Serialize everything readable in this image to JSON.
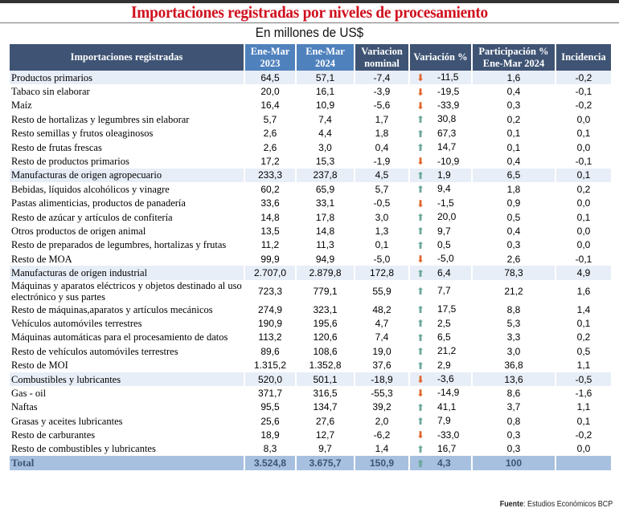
{
  "title": "Importaciones registradas por niveles de procesamiento",
  "subtitle": "En millones de US$",
  "colors": {
    "title": "#d0101e",
    "header_dark": "#3f5474",
    "header_light": "#4f81bd",
    "category_row": "#e8eef7",
    "total_row": "#a7c0e0",
    "arrow_up": "#6aa79a",
    "arrow_down": "#e0642a"
  },
  "headers": {
    "name": "Importaciones registradas",
    "y2023": "Ene-Mar 2023",
    "y2024": "Ene-Mar 2024",
    "var_nominal": "Variacion nominal",
    "var_pct": "Variación %",
    "participacion": "Participación % Ene-Mar 2024",
    "incidencia": "Incidencia"
  },
  "rows": [
    {
      "name": "Productos primarios",
      "y2023": "64,5",
      "y2024": "57,1",
      "var_nominal": "-7,4",
      "trend": "down",
      "var_pct": "-11,5",
      "participacion": "1,6",
      "incidencia": "-0,2",
      "category": true
    },
    {
      "name": "Tabaco sin elaborar",
      "y2023": "20,0",
      "y2024": "16,1",
      "var_nominal": "-3,9",
      "trend": "down",
      "var_pct": "-19,5",
      "participacion": "0,4",
      "incidencia": "-0,1"
    },
    {
      "name": "Maíz",
      "y2023": "16,4",
      "y2024": "10,9",
      "var_nominal": "-5,6",
      "trend": "down",
      "var_pct": "-33,9",
      "participacion": "0,3",
      "incidencia": "-0,2"
    },
    {
      "name": "Resto de hortalizas y legumbres sin elaborar",
      "y2023": "5,7",
      "y2024": "7,4",
      "var_nominal": "1,7",
      "trend": "up",
      "var_pct": "30,8",
      "participacion": "0,2",
      "incidencia": "0,0"
    },
    {
      "name": "Resto semillas y frutos oleaginosos",
      "y2023": "2,6",
      "y2024": "4,4",
      "var_nominal": "1,8",
      "trend": "up",
      "var_pct": "67,3",
      "participacion": "0,1",
      "incidencia": "0,1"
    },
    {
      "name": "Resto de frutas frescas",
      "y2023": "2,6",
      "y2024": "3,0",
      "var_nominal": "0,4",
      "trend": "up",
      "var_pct": "14,7",
      "participacion": "0,1",
      "incidencia": "0,0"
    },
    {
      "name": "Resto de productos primarios",
      "y2023": "17,2",
      "y2024": "15,3",
      "var_nominal": "-1,9",
      "trend": "down",
      "var_pct": "-10,9",
      "participacion": "0,4",
      "incidencia": "-0,1"
    },
    {
      "name": "Manufacturas de origen agropecuario",
      "y2023": "233,3",
      "y2024": "237,8",
      "var_nominal": "4,5",
      "trend": "up",
      "var_pct": "1,9",
      "participacion": "6,5",
      "incidencia": "0,1",
      "category": true
    },
    {
      "name": "Bebidas, líquidos alcohólicos y vinagre",
      "y2023": "60,2",
      "y2024": "65,9",
      "var_nominal": "5,7",
      "trend": "up",
      "var_pct": "9,4",
      "participacion": "1,8",
      "incidencia": "0,2"
    },
    {
      "name": "Pastas alimenticias, productos de panadería",
      "y2023": "33,6",
      "y2024": "33,1",
      "var_nominal": "-0,5",
      "trend": "down",
      "var_pct": "-1,5",
      "participacion": "0,9",
      "incidencia": "0,0"
    },
    {
      "name": "Resto de azúcar y artículos de confitería",
      "y2023": "14,8",
      "y2024": "17,8",
      "var_nominal": "3,0",
      "trend": "up",
      "var_pct": "20,0",
      "participacion": "0,5",
      "incidencia": "0,1"
    },
    {
      "name": "Otros productos de origen animal",
      "y2023": "13,5",
      "y2024": "14,8",
      "var_nominal": "1,3",
      "trend": "up",
      "var_pct": "9,7",
      "participacion": "0,4",
      "incidencia": "0,0"
    },
    {
      "name": "Resto de preparados de legumbres, hortalizas y frutas",
      "y2023": "11,2",
      "y2024": "11,3",
      "var_nominal": "0,1",
      "trend": "up",
      "var_pct": "0,5",
      "participacion": "0,3",
      "incidencia": "0,0"
    },
    {
      "name": "Resto de MOA",
      "y2023": "99,9",
      "y2024": "94,9",
      "var_nominal": "-5,0",
      "trend": "down",
      "var_pct": "-5,0",
      "participacion": "2,6",
      "incidencia": "-0,1"
    },
    {
      "name": "Manufacturas de origen industrial",
      "y2023": "2.707,0",
      "y2024": "2.879,8",
      "var_nominal": "172,8",
      "trend": "up",
      "var_pct": "6,4",
      "participacion": "78,3",
      "incidencia": "4,9",
      "category": true
    },
    {
      "name": "Máquinas y aparatos eléctricos y objetos destinado al uso electrónico y sus partes",
      "y2023": "723,3",
      "y2024": "779,1",
      "var_nominal": "55,9",
      "trend": "up",
      "var_pct": "7,7",
      "participacion": "21,2",
      "incidencia": "1,6"
    },
    {
      "name": "Resto de máquinas,aparatos y artículos mecánicos",
      "y2023": "274,9",
      "y2024": "323,1",
      "var_nominal": "48,2",
      "trend": "up",
      "var_pct": "17,5",
      "participacion": "8,8",
      "incidencia": "1,4"
    },
    {
      "name": "Vehículos automóviles terrestres",
      "y2023": "190,9",
      "y2024": "195,6",
      "var_nominal": "4,7",
      "trend": "up",
      "var_pct": "2,5",
      "participacion": "5,3",
      "incidencia": "0,1"
    },
    {
      "name": "Máquinas automáticas para el procesamiento de datos",
      "y2023": "113,2",
      "y2024": "120,6",
      "var_nominal": "7,4",
      "trend": "up",
      "var_pct": "6,5",
      "participacion": "3,3",
      "incidencia": "0,2"
    },
    {
      "name": "Resto de vehículos automóviles terrestres",
      "y2023": "89,6",
      "y2024": "108,6",
      "var_nominal": "19,0",
      "trend": "up",
      "var_pct": "21,2",
      "participacion": "3,0",
      "incidencia": "0,5"
    },
    {
      "name": "Resto de MOI",
      "y2023": "1.315,2",
      "y2024": "1.352,8",
      "var_nominal": "37,6",
      "trend": "up",
      "var_pct": "2,9",
      "participacion": "36,8",
      "incidencia": "1,1"
    },
    {
      "name": "Combustibles y lubricantes",
      "y2023": "520,0",
      "y2024": "501,1",
      "var_nominal": "-18,9",
      "trend": "down",
      "var_pct": "-3,6",
      "participacion": "13,6",
      "incidencia": "-0,5",
      "category": true
    },
    {
      "name": "Gas - oil",
      "y2023": "371,7",
      "y2024": "316,5",
      "var_nominal": "-55,3",
      "trend": "down",
      "var_pct": "-14,9",
      "participacion": "8,6",
      "incidencia": "-1,6"
    },
    {
      "name": "Naftas",
      "y2023": "95,5",
      "y2024": "134,7",
      "var_nominal": "39,2",
      "trend": "up",
      "var_pct": "41,1",
      "participacion": "3,7",
      "incidencia": "1,1"
    },
    {
      "name": "Grasas y aceites lubricantes",
      "y2023": "25,6",
      "y2024": "27,6",
      "var_nominal": "2,0",
      "trend": "up",
      "var_pct": "7,9",
      "participacion": "0,8",
      "incidencia": "0,1"
    },
    {
      "name": "Resto de carburantes",
      "y2023": "18,9",
      "y2024": "12,7",
      "var_nominal": "-6,2",
      "trend": "down",
      "var_pct": "-33,0",
      "participacion": "0,3",
      "incidencia": "-0,2"
    },
    {
      "name": "Resto de combustibles y lubricantes",
      "y2023": "8,3",
      "y2024": "9,7",
      "var_nominal": "1,4",
      "trend": "up",
      "var_pct": "16,7",
      "participacion": "0,3",
      "incidencia": "0,0"
    }
  ],
  "total": {
    "name": "Total",
    "y2023": "3.524,8",
    "y2024": "3.675,7",
    "var_nominal": "150,9",
    "trend": "up",
    "var_pct": "4,3",
    "participacion": "100",
    "incidencia": ""
  },
  "source": {
    "label": "Fuente",
    "text": ": Estudios Económicos BCP"
  }
}
